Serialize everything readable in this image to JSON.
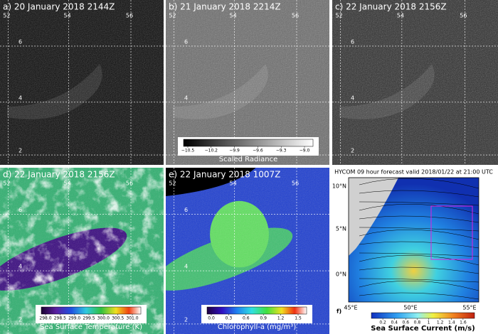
{
  "panels": [
    {
      "title": "a)  20 January 2018 2144Z",
      "lon_labels": [
        "52",
        "54",
        "56"
      ],
      "lat_labels": [
        "6",
        "4",
        "2"
      ]
    },
    {
      "title": "b)  21 January 2018 2214Z",
      "lon_labels": [
        "52",
        "54",
        "56"
      ],
      "lat_labels": [
        "6",
        "4",
        "2"
      ],
      "colorbar": {
        "ticks": [
          "−10.5",
          "−10.2",
          "−9.9",
          "−9.6",
          "−9.3",
          "−9.0"
        ],
        "label": "Scaled Radiance"
      }
    },
    {
      "title": "c)  22 January 2018 2156Z",
      "lon_labels": [
        "52",
        "54",
        "56"
      ],
      "lat_labels": [
        "6",
        "4",
        "2"
      ]
    },
    {
      "title": "d)  22 January 2018 2156Z",
      "lon_labels": [
        "52",
        "54",
        "56"
      ],
      "lat_labels": [
        "6",
        "4",
        "2"
      ],
      "colorbar": {
        "ticks": [
          "298.0",
          "298.5",
          "299.0",
          "299.5",
          "300.0",
          "300.5",
          "301.0"
        ],
        "label": "Sea Surface Temperature (K)"
      }
    },
    {
      "title": "e)  22 January 2018 1007Z",
      "lon_labels": [
        "52",
        "54",
        "56"
      ],
      "lat_labels": [
        "6",
        "4",
        "2"
      ],
      "colorbar": {
        "ticks": [
          "0.0",
          "0.3",
          "0.6",
          "0.9",
          "1.2",
          "1.5"
        ],
        "label": "Chlorophyll-a (mg/m³)"
      }
    },
    {
      "title": "HYCOM 09 hour forecast valid 2018/01/22 at 21:00 UTC",
      "label": "f)",
      "lon_labels": [
        "45°E",
        "50°E",
        "55°E"
      ],
      "lat_labels": [
        "10°N",
        "5°N",
        "0°N"
      ],
      "colorbar": {
        "ticks": [
          "0.2",
          "0.4",
          "0.6",
          "0.8",
          "1",
          "1.2",
          "1.4",
          "1.6"
        ],
        "label": "Sea Surface Current (m/s)"
      }
    }
  ]
}
